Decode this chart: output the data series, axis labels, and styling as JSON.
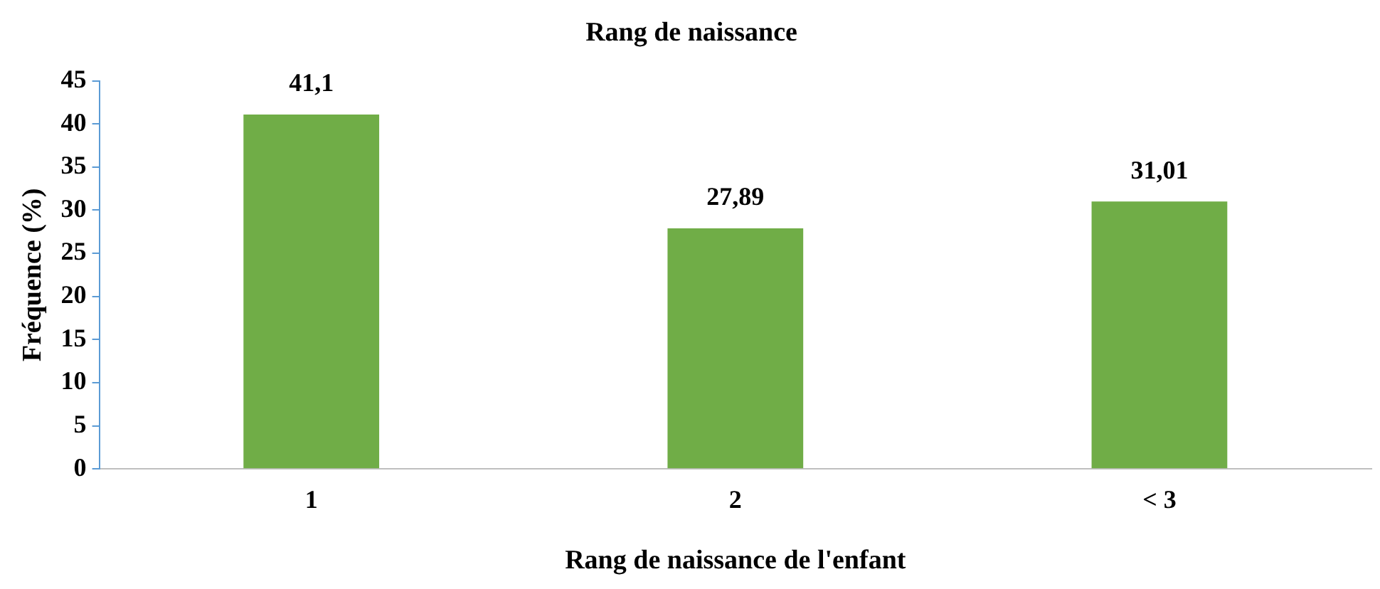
{
  "chart_data": {
    "type": "bar",
    "title": "Rang de naissance",
    "xlabel": "Rang de naissance de l'enfant",
    "ylabel": "Fréquence (%)",
    "categories": [
      "1",
      "2",
      "< 3"
    ],
    "values": [
      41.1,
      27.89,
      31.01
    ],
    "value_labels": [
      "41,1",
      "27,89",
      "31,01"
    ],
    "color": "#70ad47",
    "ylim": [
      0,
      45
    ],
    "yticks": [
      0,
      5,
      10,
      15,
      20,
      25,
      30,
      35,
      40,
      45
    ],
    "grid": false,
    "legend": false
  }
}
